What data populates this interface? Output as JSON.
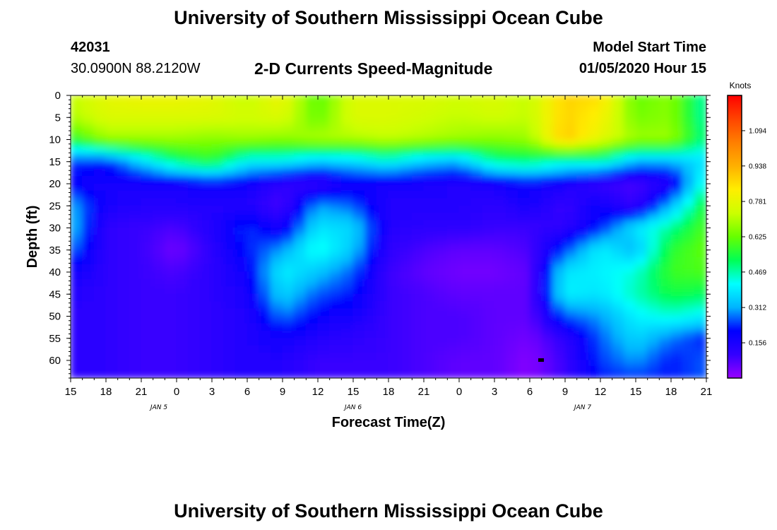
{
  "header": {
    "title": "University of Southern Mississippi Ocean Cube",
    "footer_title": "University of Southern Mississippi Ocean Cube",
    "station_id": "42031",
    "location": "30.0900N 88.2120W",
    "subtitle": "2-D Currents Speed-Magnitude",
    "model_start_label": "Model Start Time",
    "model_start_value": "01/05/2020 Hour 15"
  },
  "colors": {
    "ramp": [
      "#9900ff",
      "#3300ff",
      "#0000ff",
      "#00b4ff",
      "#00ffff",
      "#00ff55",
      "#66ff00",
      "#ccff00",
      "#ffee00",
      "#ffb000",
      "#ff7f00",
      "#ff4400",
      "#ff0000"
    ],
    "cell_anomaly": "#000000"
  },
  "chart_data": {
    "type": "heatmap",
    "xlabel": "Forecast Time(Z)",
    "ylabel": "Depth (ft)",
    "x_tick_labels": [
      "15",
      "18",
      "21",
      "0",
      "3",
      "6",
      "9",
      "12",
      "15",
      "18",
      "21",
      "0",
      "3",
      "6",
      "9",
      "12",
      "15",
      "18",
      "21"
    ],
    "date_labels": [
      {
        "label": "JAN 5",
        "tick_index": 2.5
      },
      {
        "label": "JAN 6",
        "tick_index": 8
      },
      {
        "label": "JAN 7",
        "tick_index": 14.5
      }
    ],
    "y_tick_labels": [
      "0",
      "5",
      "10",
      "15",
      "20",
      "25",
      "30",
      "35",
      "40",
      "45",
      "50",
      "55",
      "60"
    ],
    "ylim": [
      0,
      64
    ],
    "x_range_hours": [
      0,
      54
    ],
    "colorbar": {
      "unit": "Knots",
      "range": [
        0,
        1.25
      ],
      "ticks": [
        0.156,
        0.312,
        0.469,
        0.625,
        0.781,
        0.938,
        1.094
      ],
      "tick_labels": [
        "0.156",
        "0.312",
        "0.469",
        "0.625",
        "0.781",
        "0.938",
        "1.094"
      ]
    },
    "grid_times_hours": [
      0,
      3,
      6,
      9,
      12,
      15,
      18,
      21,
      24,
      27,
      30,
      33,
      36,
      39,
      42,
      45,
      48,
      51,
      54
    ],
    "grid_depths_ft": [
      0,
      5,
      10,
      15,
      20,
      25,
      30,
      35,
      40,
      45,
      50,
      55,
      60,
      64
    ],
    "speed_knots": [
      [
        0.72,
        0.78,
        0.8,
        0.8,
        0.78,
        0.72,
        0.8,
        0.6,
        0.76,
        0.76,
        0.76,
        0.74,
        0.76,
        0.72,
        0.88,
        0.86,
        0.62,
        0.66,
        0.46
      ],
      [
        0.7,
        0.76,
        0.76,
        0.76,
        0.76,
        0.74,
        0.76,
        0.62,
        0.76,
        0.76,
        0.74,
        0.72,
        0.74,
        0.72,
        0.88,
        0.82,
        0.64,
        0.66,
        0.46
      ],
      [
        0.56,
        0.68,
        0.68,
        0.68,
        0.66,
        0.68,
        0.66,
        0.7,
        0.7,
        0.72,
        0.7,
        0.68,
        0.66,
        0.68,
        0.9,
        0.78,
        0.68,
        0.68,
        0.48
      ],
      [
        0.24,
        0.22,
        0.36,
        0.5,
        0.56,
        0.4,
        0.4,
        0.34,
        0.36,
        0.42,
        0.34,
        0.32,
        0.48,
        0.5,
        0.44,
        0.46,
        0.32,
        0.32,
        0.38
      ],
      [
        0.2,
        0.16,
        0.16,
        0.16,
        0.2,
        0.18,
        0.12,
        0.1,
        0.18,
        0.16,
        0.16,
        0.14,
        0.16,
        0.2,
        0.16,
        0.1,
        0.08,
        0.14,
        0.46
      ],
      [
        0.32,
        0.16,
        0.14,
        0.14,
        0.14,
        0.14,
        0.08,
        0.3,
        0.26,
        0.14,
        0.14,
        0.14,
        0.12,
        0.16,
        0.1,
        0.18,
        0.1,
        0.32,
        0.56
      ],
      [
        0.34,
        0.12,
        0.1,
        0.08,
        0.14,
        0.24,
        0.16,
        0.38,
        0.36,
        0.14,
        0.12,
        0.12,
        0.1,
        0.1,
        0.12,
        0.22,
        0.38,
        0.48,
        0.6
      ],
      [
        0.28,
        0.12,
        0.1,
        0.04,
        0.12,
        0.22,
        0.3,
        0.44,
        0.34,
        0.12,
        0.08,
        0.06,
        0.06,
        0.08,
        0.24,
        0.4,
        0.32,
        0.56,
        0.62
      ],
      [
        0.18,
        0.12,
        0.1,
        0.08,
        0.12,
        0.18,
        0.4,
        0.34,
        0.26,
        0.1,
        0.06,
        0.04,
        0.04,
        0.06,
        0.38,
        0.4,
        0.44,
        0.58,
        0.6
      ],
      [
        0.14,
        0.12,
        0.1,
        0.1,
        0.12,
        0.16,
        0.36,
        0.26,
        0.22,
        0.1,
        0.08,
        0.06,
        0.06,
        0.06,
        0.4,
        0.38,
        0.46,
        0.54,
        0.52
      ],
      [
        0.12,
        0.12,
        0.1,
        0.1,
        0.12,
        0.14,
        0.28,
        0.2,
        0.16,
        0.1,
        0.08,
        0.08,
        0.06,
        0.06,
        0.26,
        0.3,
        0.4,
        0.44,
        0.4
      ],
      [
        0.12,
        0.12,
        0.1,
        0.1,
        0.12,
        0.14,
        0.18,
        0.14,
        0.12,
        0.1,
        0.08,
        0.08,
        0.06,
        0.04,
        0.12,
        0.26,
        0.36,
        0.28,
        0.22
      ],
      [
        0.12,
        0.12,
        0.1,
        0.1,
        0.12,
        0.14,
        0.14,
        0.1,
        0.1,
        0.1,
        0.08,
        0.06,
        0.06,
        0.02,
        0.1,
        0.24,
        0.3,
        0.22,
        0.26
      ],
      [
        0.12,
        0.12,
        0.1,
        0.1,
        0.12,
        0.14,
        0.14,
        0.1,
        0.1,
        0.1,
        0.08,
        0.06,
        0.06,
        0.02,
        0.1,
        0.22,
        0.24,
        0.22,
        0.26
      ]
    ]
  }
}
